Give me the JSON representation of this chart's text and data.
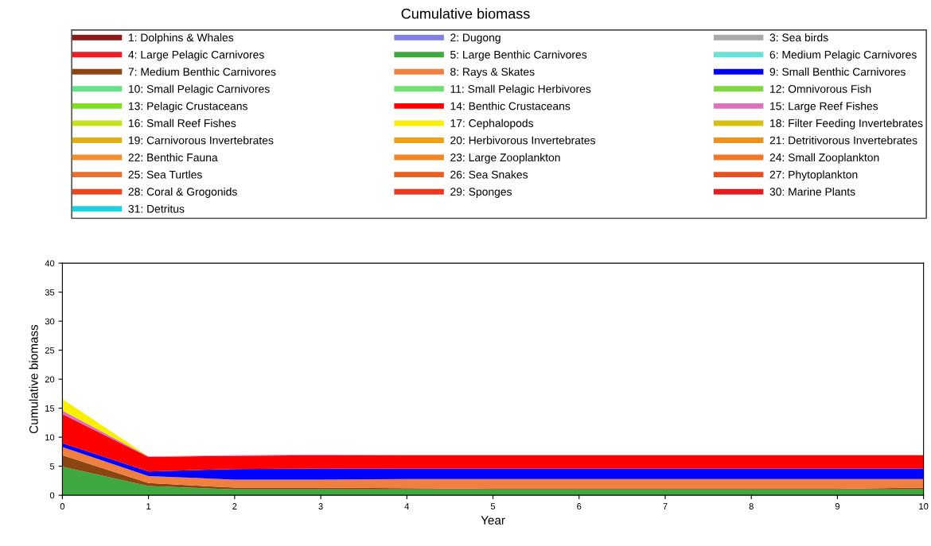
{
  "chart_data": {
    "type": "area",
    "stacked": true,
    "title": "Cumulative biomass",
    "xlabel": "Year",
    "ylabel": "Cumulative biomass",
    "x": [
      0,
      1,
      2,
      3,
      4,
      5,
      6,
      7,
      8,
      9,
      10
    ],
    "xlim": [
      0,
      10
    ],
    "xticks": [
      0,
      1,
      2,
      3,
      4,
      5,
      6,
      7,
      8,
      9,
      10
    ],
    "ylim": [
      0,
      40
    ],
    "yticks": [
      0,
      5,
      10,
      15,
      20,
      25,
      30,
      35,
      40
    ],
    "grid": false,
    "legend": "top",
    "series": [
      {
        "name": "1: Dolphins & Whales",
        "color": "#8b1a1a",
        "values": [
          null,
          null,
          null,
          null,
          null,
          null,
          null,
          null,
          null,
          null,
          null
        ]
      },
      {
        "name": "2: Dugong",
        "color": "#8080e0",
        "values": [
          null,
          null,
          null,
          null,
          null,
          null,
          null,
          null,
          null,
          null,
          null
        ]
      },
      {
        "name": "3: Sea birds",
        "color": "#a9a9a9",
        "values": [
          null,
          null,
          null,
          null,
          null,
          null,
          null,
          null,
          null,
          null,
          null
        ]
      },
      {
        "name": "4: Large Pelagic Carnivores",
        "color": "#e8202a",
        "values": [
          null,
          null,
          null,
          null,
          null,
          null,
          null,
          null,
          null,
          null,
          null
        ]
      },
      {
        "name": "5: Large Benthic Carnivores",
        "color": "#40a840",
        "values": [
          4.9,
          1.6,
          1.0,
          1.0,
          1.0,
          1.0,
          1.0,
          1.0,
          1.0,
          1.0,
          1.0
        ]
      },
      {
        "name": "6: Medium Pelagic Carnivores",
        "color": "#6fe0d8",
        "values": [
          null,
          null,
          null,
          null,
          null,
          null,
          null,
          null,
          null,
          null,
          null
        ]
      },
      {
        "name": "7: Medium Benthic Carnivores",
        "color": "#8b4513",
        "values": [
          2.0,
          0.5,
          0.3,
          0.3,
          0.2,
          0.1,
          0.1,
          0.1,
          0.1,
          0.1,
          0.3
        ]
      },
      {
        "name": "8: Rays & Skates",
        "color": "#f08040",
        "values": [
          1.4,
          1.2,
          1.4,
          1.4,
          1.6,
          1.7,
          1.7,
          1.7,
          1.7,
          1.7,
          1.5
        ]
      },
      {
        "name": "9: Small Benthic Carnivores",
        "color": "#0000ff",
        "values": [
          0.7,
          0.8,
          1.8,
          1.9,
          1.8,
          1.8,
          1.8,
          1.8,
          1.8,
          1.8,
          1.8
        ]
      },
      {
        "name": "10: Small Pelagic Carnivores",
        "color": "#66e08a",
        "values": [
          null,
          null,
          null,
          null,
          null,
          null,
          null,
          null,
          null,
          null,
          null
        ]
      },
      {
        "name": "11: Small Pelagic Herbivores",
        "color": "#70e070",
        "values": [
          null,
          null,
          null,
          null,
          null,
          null,
          null,
          null,
          null,
          null,
          null
        ]
      },
      {
        "name": "12: Omnivorous Fish",
        "color": "#80d840",
        "values": [
          null,
          null,
          null,
          null,
          null,
          null,
          null,
          null,
          null,
          null,
          null
        ]
      },
      {
        "name": "13: Pelagic Crustaceans",
        "color": "#80e020",
        "values": [
          null,
          null,
          null,
          null,
          null,
          null,
          null,
          null,
          null,
          null,
          null
        ]
      },
      {
        "name": "14: Benthic Crustaceans",
        "color": "#ff0000",
        "values": [
          5.0,
          2.5,
          2.3,
          2.3,
          2.3,
          2.3,
          2.3,
          2.3,
          2.3,
          2.3,
          2.3
        ]
      },
      {
        "name": "15: Large Reef Fishes",
        "color": "#e070c0",
        "values": [
          0.6,
          0.1,
          0.1,
          0.1,
          0,
          0,
          0,
          0,
          0,
          0,
          0
        ]
      },
      {
        "name": "16: Small Reef Fishes",
        "color": "#c8e020",
        "values": [
          null,
          null,
          null,
          null,
          null,
          null,
          null,
          null,
          null,
          null,
          null
        ]
      },
      {
        "name": "17: Cephalopods",
        "color": "#f8f000",
        "values": [
          2.0,
          0,
          0,
          0,
          0,
          0,
          0,
          0,
          0,
          0,
          0
        ]
      },
      {
        "name": "18: Filter Feeding Invertebrates",
        "color": "#d8c010",
        "values": [
          null,
          null,
          null,
          null,
          null,
          null,
          null,
          null,
          null,
          null,
          null
        ]
      },
      {
        "name": "19: Carnivorous Invertebrates",
        "color": "#e0b010",
        "values": [
          null,
          null,
          null,
          null,
          null,
          null,
          null,
          null,
          null,
          null,
          null
        ]
      },
      {
        "name": "20: Herbivorous Invertebrates",
        "color": "#f0a010",
        "values": [
          null,
          null,
          null,
          null,
          null,
          null,
          null,
          null,
          null,
          null,
          null
        ]
      },
      {
        "name": "21: Detritivorous Invertebrates",
        "color": "#f09018",
        "values": [
          null,
          null,
          null,
          null,
          null,
          null,
          null,
          null,
          null,
          null,
          null
        ]
      },
      {
        "name": "22: Benthic Fauna",
        "color": "#f09030",
        "values": [
          null,
          null,
          null,
          null,
          null,
          null,
          null,
          null,
          null,
          null,
          null
        ]
      },
      {
        "name": "23: Large Zooplankton",
        "color": "#f08828",
        "values": [
          null,
          null,
          null,
          null,
          null,
          null,
          null,
          null,
          null,
          null,
          null
        ]
      },
      {
        "name": "24: Small Zooplankton",
        "color": "#f07828",
        "values": [
          null,
          null,
          null,
          null,
          null,
          null,
          null,
          null,
          null,
          null,
          null
        ]
      },
      {
        "name": "25: Sea Turtles",
        "color": "#e87030",
        "values": [
          null,
          null,
          null,
          null,
          null,
          null,
          null,
          null,
          null,
          null,
          null
        ]
      },
      {
        "name": "26: Sea Snakes",
        "color": "#e86020",
        "values": [
          null,
          null,
          null,
          null,
          null,
          null,
          null,
          null,
          null,
          null,
          null
        ]
      },
      {
        "name": "27: Phytoplankton",
        "color": "#e85020",
        "values": [
          null,
          null,
          null,
          null,
          null,
          null,
          null,
          null,
          null,
          null,
          null
        ]
      },
      {
        "name": "28: Coral & Grogonids",
        "color": "#e84820",
        "values": [
          null,
          null,
          null,
          null,
          null,
          null,
          null,
          null,
          null,
          null,
          null
        ]
      },
      {
        "name": "29: Sponges",
        "color": "#e83820",
        "values": [
          null,
          null,
          null,
          null,
          null,
          null,
          null,
          null,
          null,
          null,
          null
        ]
      },
      {
        "name": "30: Marine Plants",
        "color": "#e02020",
        "values": [
          null,
          null,
          null,
          null,
          null,
          null,
          null,
          null,
          null,
          null,
          null
        ]
      },
      {
        "name": "31: Detritus",
        "color": "#20d0e0",
        "values": [
          null,
          null,
          null,
          null,
          null,
          null,
          null,
          null,
          null,
          null,
          null
        ]
      }
    ]
  }
}
